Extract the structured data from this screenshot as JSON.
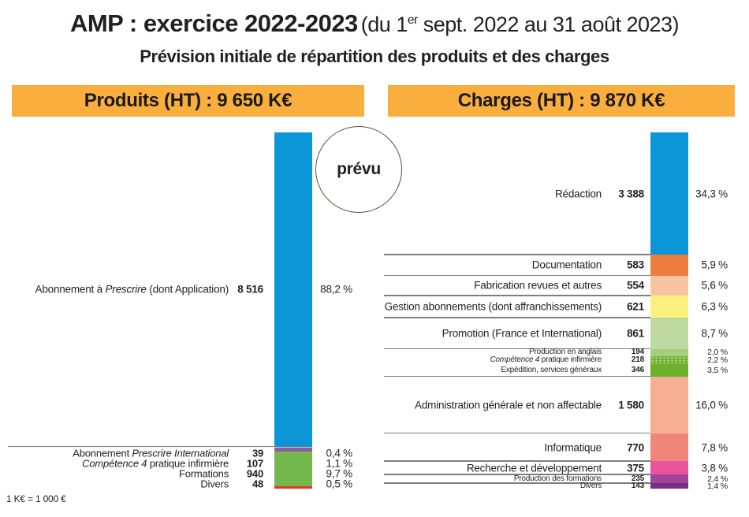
{
  "page": {
    "title_bold": "AMP : exercice 2022-2023",
    "title_paren_pre": "(du 1",
    "title_sup": "er",
    "title_paren_post": " sept. 2022 au 31 août 2023)",
    "subtitle": "Prévision initiale de répartition des produits et des charges",
    "annotation": "prévu",
    "footnote": "1 K€ = 1 000 €",
    "colors": {
      "header_bg": "#F9AE3D",
      "text": "#231F20",
      "separator_line": "#7E7E7E",
      "circle_border": "#5B4F47"
    }
  },
  "chart_data": [
    {
      "type": "bar",
      "name": "produits",
      "title": "Produits (HT) : 9 650 K€",
      "total": "9 650",
      "unit": "K€",
      "segments": [
        {
          "label_parts": [
            {
              "t": "Abonnement à "
            },
            {
              "t": "Prescrire",
              "i": true
            },
            {
              "t": " (dont Application)"
            }
          ],
          "value": "8 516",
          "value_num": 8516,
          "pct": "88,2 %",
          "pct_num": 88.2,
          "color": "#0C95D7"
        },
        {
          "label_parts": [
            {
              "t": "Abonnement "
            },
            {
              "t": "Prescrire International",
              "i": true
            }
          ],
          "value": "39",
          "value_num": 39,
          "pct": "0,4 %",
          "pct_num": 0.4,
          "color": "#F2BFA4",
          "row": "stacked",
          "line_above": true
        },
        {
          "label_parts": [
            {
              "t": "Compétence 4",
              "i": true
            },
            {
              "t": " pratique infirmière"
            }
          ],
          "value": "107",
          "value_num": 107,
          "pct": "1,1 %",
          "pct_num": 1.1,
          "color": "#8A5CA6",
          "row": "stacked"
        },
        {
          "label_parts": [
            {
              "t": "Formations"
            }
          ],
          "value": "940",
          "value_num": 940,
          "pct": "9,7 %",
          "pct_num": 9.7,
          "color": "#74B84D",
          "row": "stacked"
        },
        {
          "label_parts": [
            {
              "t": "Divers"
            }
          ],
          "value": "48",
          "value_num": 48,
          "pct": "0,5 %",
          "pct_num": 0.5,
          "color": "#E8332B",
          "row": "stacked"
        }
      ]
    },
    {
      "type": "bar",
      "name": "charges",
      "title": "Charges (HT) : 9 870 K€",
      "total": "9 870",
      "unit": "K€",
      "segments": [
        {
          "label_parts": [
            {
              "t": "Rédaction"
            }
          ],
          "value": "3 388",
          "value_num": 3388,
          "pct": "34,3 %",
          "pct_num": 34.3,
          "color": "#0C95D7"
        },
        {
          "label_parts": [
            {
              "t": "Documentation"
            }
          ],
          "value": "583",
          "value_num": 583,
          "pct": "5,9 %",
          "pct_num": 5.9,
          "color": "#ED7D3D",
          "line_above": true
        },
        {
          "label_parts": [
            {
              "t": "Fabrication revues et autres"
            }
          ],
          "value": "554",
          "value_num": 554,
          "pct": "5,6 %",
          "pct_num": 5.6,
          "color": "#F6C4A0",
          "line_above": true
        },
        {
          "label_parts": [
            {
              "t": "Gestion abonnements (dont affranchissements)"
            }
          ],
          "value": "621",
          "value_num": 621,
          "pct": "6,3 %",
          "pct_num": 6.3,
          "color": "#FCF07E",
          "line_above": true
        },
        {
          "label_parts": [
            {
              "t": "Promotion (France et International)"
            }
          ],
          "value": "861",
          "value_num": 861,
          "pct": "8,7 %",
          "pct_num": 8.7,
          "color": "#BEDAA2",
          "line_above": true
        },
        {
          "label_parts": [
            {
              "t": "Production en anglais"
            }
          ],
          "value": "194",
          "value_num": 194,
          "pct": "2,0 %",
          "pct_num": 2.0,
          "color": "#A5CF7D",
          "line_above": true,
          "small": true
        },
        {
          "label_parts": [
            {
              "t": "Compétence 4",
              "i": true
            },
            {
              "t": " pratique infirmière"
            }
          ],
          "value": "218",
          "value_num": 218,
          "pct": "2,2 %",
          "pct_num": 2.2,
          "color": "#72B433",
          "small": true,
          "dotted": true
        },
        {
          "label_parts": [
            {
              "t": "Expédition, services généraux"
            }
          ],
          "value": "346",
          "value_num": 346,
          "pct": "3,5 %",
          "pct_num": 3.5,
          "color": "#6DB02E",
          "small": true
        },
        {
          "label_parts": [
            {
              "t": "Administration générale et non affectable"
            }
          ],
          "value": "1 580",
          "value_num": 1580,
          "pct": "16,0 %",
          "pct_num": 16.0,
          "color": "#F7AF93",
          "line_above": true
        },
        {
          "label_parts": [
            {
              "t": "Informatique"
            }
          ],
          "value": "770",
          "value_num": 770,
          "pct": "7,8 %",
          "pct_num": 7.8,
          "color": "#F0857C",
          "line_above": true
        },
        {
          "label_parts": [
            {
              "t": "Recherche et développement"
            }
          ],
          "value": "375",
          "value_num": 375,
          "pct": "3,8 %",
          "pct_num": 3.8,
          "color": "#E9549D",
          "line_above": true
        },
        {
          "label_parts": [
            {
              "t": "Production des formations"
            }
          ],
          "value": "235",
          "value_num": 235,
          "pct": "2,4 %",
          "pct_num": 2.4,
          "color": "#A0439A",
          "line_above": true,
          "small": true
        },
        {
          "label_parts": [
            {
              "t": "Divers"
            }
          ],
          "value": "143",
          "value_num": 143,
          "pct": "1,4 %",
          "pct_num": 1.4,
          "color": "#7B2E83",
          "line_above": true,
          "small": true
        }
      ]
    }
  ]
}
